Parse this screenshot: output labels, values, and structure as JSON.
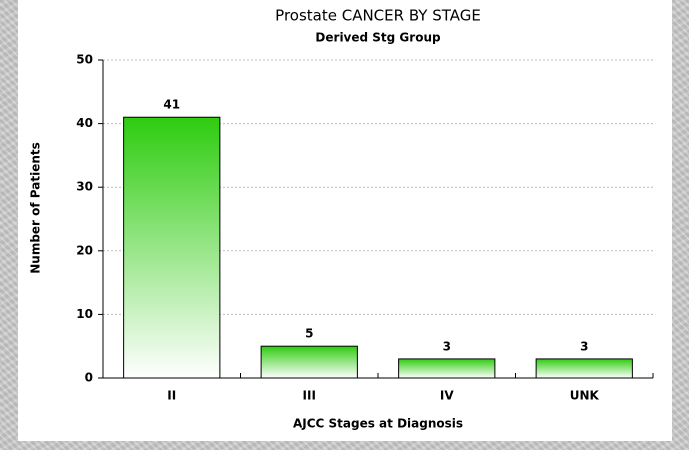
{
  "chart_data": {
    "type": "bar",
    "title": "Prostate CANCER BY STAGE",
    "subtitle": "Derived Stg Group",
    "x_label": "AJCC Stages at Diagnosis",
    "y_label": "Number of Patients",
    "categories": [
      "II",
      "III",
      "IV",
      "UNK"
    ],
    "values": [
      41,
      5,
      3,
      3
    ],
    "color": "#2ecc0f",
    "ylim": [
      0,
      50
    ],
    "yticks": [
      0,
      10,
      20,
      30,
      40,
      50
    ],
    "grid": true
  }
}
